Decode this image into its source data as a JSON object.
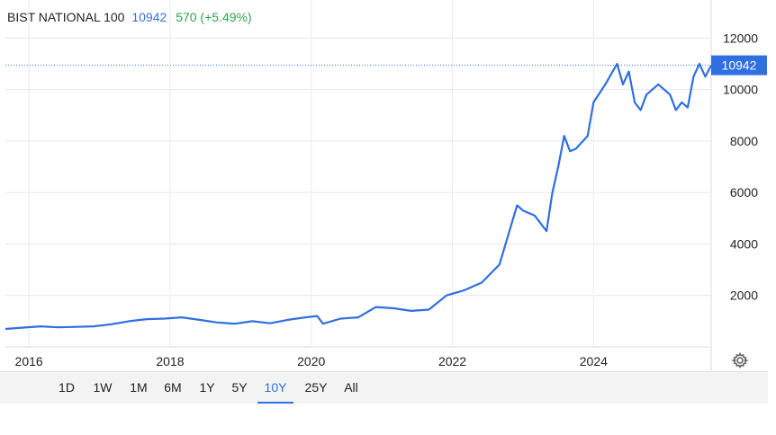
{
  "header": {
    "name": "BIST NATIONAL 100",
    "last": "10942",
    "change": "570 (+5.49%)"
  },
  "colors": {
    "line": "#2f6fe0",
    "last_badge": "#2f6fe0",
    "change_positive": "#2da44e"
  },
  "range_buttons": [
    "1D",
    "1W",
    "1M",
    "6M",
    "1Y",
    "5Y",
    "10Y",
    "25Y",
    "All"
  ],
  "active_range": "10Y",
  "chart_data": {
    "type": "line",
    "title": "BIST NATIONAL 100",
    "xlabel": "",
    "ylabel": "",
    "x_ticks": [
      "2016",
      "2018",
      "2020",
      "2022",
      "2024"
    ],
    "y_ticks": [
      2000,
      4000,
      6000,
      8000,
      10000,
      12000
    ],
    "ylim": [
      0,
      12500
    ],
    "xlim": [
      "2015-09",
      "2025-09"
    ],
    "last_value": 10942,
    "grid": true,
    "series": [
      {
        "name": "BIST NATIONAL 100",
        "x": [
          "2015-09",
          "2015-12",
          "2016-03",
          "2016-06",
          "2016-09",
          "2016-12",
          "2017-03",
          "2017-06",
          "2017-09",
          "2017-12",
          "2018-03",
          "2018-06",
          "2018-09",
          "2018-12",
          "2019-03",
          "2019-06",
          "2019-09",
          "2019-12",
          "2020-02",
          "2020-03",
          "2020-06",
          "2020-09",
          "2020-12",
          "2021-03",
          "2021-06",
          "2021-09",
          "2021-12",
          "2022-03",
          "2022-06",
          "2022-09",
          "2022-12",
          "2023-01",
          "2023-03",
          "2023-05",
          "2023-06",
          "2023-07",
          "2023-08",
          "2023-09",
          "2023-10",
          "2023-12",
          "2024-01",
          "2024-03",
          "2024-05",
          "2024-06",
          "2024-07",
          "2024-08",
          "2024-09",
          "2024-10",
          "2024-12",
          "2025-01",
          "2025-02",
          "2025-03",
          "2025-04",
          "2025-05",
          "2025-06",
          "2025-07",
          "2025-08",
          "2025-09"
        ],
        "values": [
          700,
          750,
          800,
          760,
          780,
          800,
          880,
          1000,
          1080,
          1100,
          1150,
          1050,
          950,
          900,
          1000,
          920,
          1050,
          1150,
          1200,
          900,
          1100,
          1150,
          1550,
          1500,
          1400,
          1450,
          2000,
          2200,
          2500,
          3200,
          5500,
          5300,
          5100,
          4500,
          6000,
          7000,
          8200,
          7600,
          7700,
          8200,
          9500,
          10200,
          11000,
          10200,
          10700,
          9500,
          9200,
          9800,
          10200,
          10000,
          9800,
          9200,
          9500,
          9300,
          10500,
          11000,
          10500,
          10942
        ]
      }
    ]
  }
}
